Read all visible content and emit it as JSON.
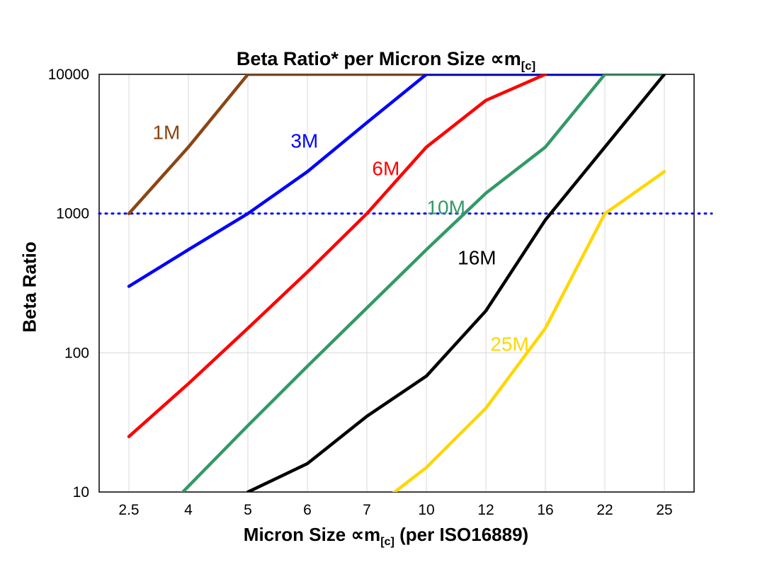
{
  "chart": {
    "title": {
      "main": "Beta Ratio* per Micron Size ",
      "symbol": "∝m",
      "sub": "[c]"
    },
    "ylabel": "Beta Ratio",
    "xlabel": {
      "main": "Micron Size ",
      "symbol": "∝m",
      "sub": "[c]",
      "post": " (per ISO16889)"
    }
  },
  "chart_data": {
    "type": "line",
    "x_categories": [
      "2.5",
      "4",
      "5",
      "6",
      "7",
      "10",
      "12",
      "16",
      "22",
      "25"
    ],
    "x_axis_note": "categorical, equally spaced micron sizes",
    "y_scale": "log",
    "ylim": [
      10,
      10000
    ],
    "y_ticks": [
      10,
      100,
      1000,
      10000
    ],
    "grid": true,
    "grid_color": "#d9d9d9",
    "reference_line": {
      "y": 1000,
      "color": "#0000ff",
      "style": "dotted"
    },
    "legend": "inline-labels",
    "series": [
      {
        "name": "1M",
        "color": "#8B4513",
        "values": [
          1000,
          3000,
          10000,
          10000,
          10000,
          10000,
          null,
          null,
          null,
          null
        ],
        "label": {
          "xi": 0.63,
          "y": 3800
        }
      },
      {
        "name": "3M",
        "color": "#0000ff",
        "values": [
          300,
          550,
          1000,
          2000,
          4500,
          10000,
          10000,
          10000,
          10000,
          null
        ],
        "label": {
          "xi": 2.95,
          "y": 3300
        }
      },
      {
        "name": "6M",
        "color": "#ff0000",
        "values": [
          25,
          60,
          150,
          380,
          1000,
          3000,
          6500,
          10000,
          null,
          null
        ],
        "label": {
          "xi": 4.32,
          "y": 2100
        }
      },
      {
        "name": "10M",
        "color": "#339966",
        "values": [
          4,
          11,
          30,
          80,
          210,
          550,
          1400,
          3000,
          10000,
          10000
        ],
        "label": {
          "xi": 5.33,
          "y": 1100
        }
      },
      {
        "name": "16M",
        "color": "#000000",
        "values": [
          null,
          null,
          10,
          16,
          35,
          68,
          200,
          900,
          3000,
          10000
        ],
        "label": {
          "xi": 5.85,
          "y": 480
        }
      },
      {
        "name": "25M",
        "color": "#FFD700",
        "values": [
          null,
          null,
          null,
          null,
          7,
          15,
          40,
          150,
          1000,
          2000
        ],
        "label": {
          "xi": 6.4,
          "y": 115
        }
      }
    ]
  }
}
